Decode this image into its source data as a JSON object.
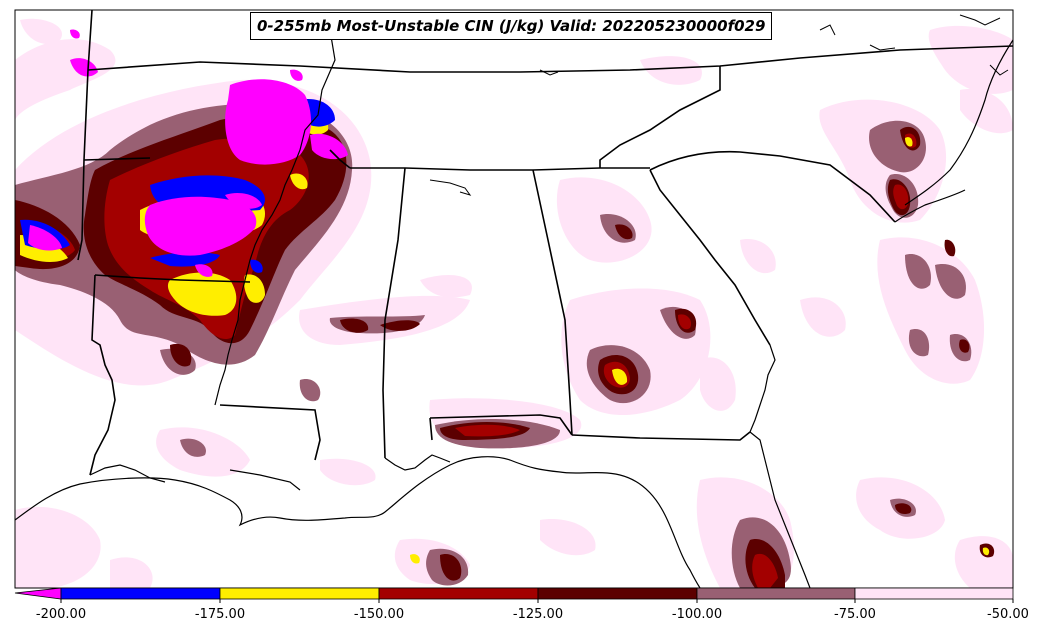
{
  "title": "0-255mb Most-Unstable CIN (J/kg) Valid: 202205230000f029",
  "colorbar": {
    "extend": "min",
    "ticks": [
      "-200.00",
      "-175.00",
      "-150.00",
      "-125.00",
      "-100.00",
      "-75.00",
      "-50.00"
    ],
    "levels": [
      -200,
      -175,
      -150,
      -125,
      -100,
      -75,
      -50
    ],
    "colors": [
      "#ff00ff",
      "#0000ff",
      "#ffee00",
      "#a30000",
      "#5c0000",
      "#996073",
      "#ffe4f7"
    ]
  },
  "legend_bins": [
    {
      "range": "< -200",
      "color": "#ff00ff"
    },
    {
      "range": "-200 to -175",
      "color": "#0000ff"
    },
    {
      "range": "-175 to -150",
      "color": "#ffee00"
    },
    {
      "range": "-150 to -125",
      "color": "#a30000"
    },
    {
      "range": "-125 to -100",
      "color": "#5c0000"
    },
    {
      "range": "-100 to -75",
      "color": "#996073"
    },
    {
      "range": "-75 to -50",
      "color": "#ffe4f7"
    }
  ],
  "region": "Southeastern United States"
}
